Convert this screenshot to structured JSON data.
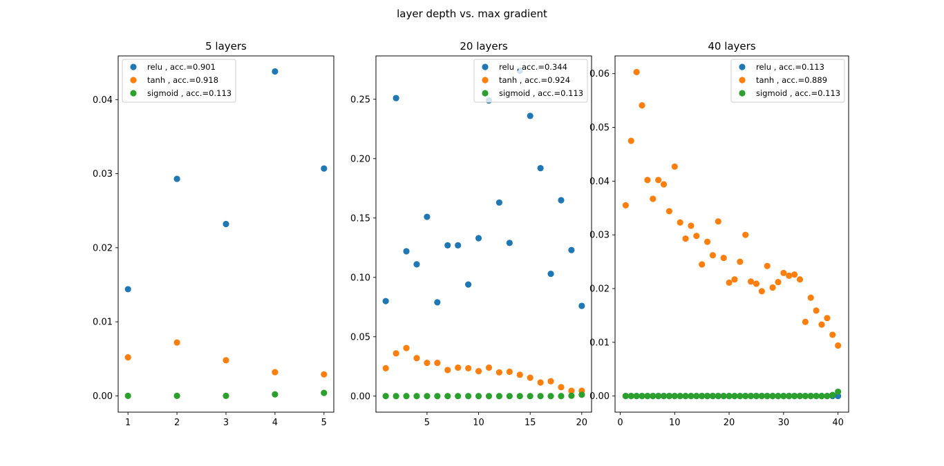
{
  "figure": {
    "suptitle": "layer depth vs. max gradient"
  },
  "chart_data": [
    {
      "type": "scatter",
      "title": "5 layers",
      "xlim": [
        0.8,
        5.2
      ],
      "ylim": [
        -0.0022,
        0.0459
      ],
      "xticks": [
        1,
        2,
        3,
        4,
        5
      ],
      "yticks": [
        0.0,
        0.01,
        0.02,
        0.03,
        0.04
      ],
      "ytick_format": 2,
      "legend_loc": "upper-left",
      "series": [
        {
          "name": "relu , acc.=0.901",
          "color": "#1f77b4",
          "x": [
            1,
            2,
            3,
            4,
            5
          ],
          "y": [
            0.0144,
            0.0293,
            0.0232,
            0.0438,
            0.0307
          ]
        },
        {
          "name": "tanh , acc.=0.918",
          "color": "#ff7f0e",
          "x": [
            1,
            2,
            3,
            4,
            5
          ],
          "y": [
            0.0052,
            0.0072,
            0.0048,
            0.0032,
            0.0029
          ]
        },
        {
          "name": "sigmoid , acc.=0.113",
          "color": "#2ca02c",
          "x": [
            1,
            2,
            3,
            4,
            5
          ],
          "y": [
            0.0,
            0.0,
            0.0,
            0.0002,
            0.0004
          ]
        }
      ]
    },
    {
      "type": "scatter",
      "title": "20 layers",
      "xlim": [
        0.05,
        20.95
      ],
      "ylim": [
        -0.0135,
        0.2865
      ],
      "xticks": [
        5,
        10,
        15,
        20
      ],
      "yticks": [
        0.0,
        0.05,
        0.1,
        0.15,
        0.2,
        0.25
      ],
      "ytick_format": 2,
      "legend_loc": "upper-right",
      "series": [
        {
          "name": "relu , acc.=0.344",
          "color": "#1f77b4",
          "x": [
            1,
            2,
            3,
            4,
            5,
            6,
            7,
            8,
            9,
            10,
            11,
            12,
            13,
            14,
            15,
            16,
            17,
            18,
            19,
            20
          ],
          "y": [
            0.08,
            0.251,
            0.122,
            0.111,
            0.151,
            0.079,
            0.127,
            0.127,
            0.094,
            0.133,
            0.249,
            0.163,
            0.129,
            0.274,
            0.236,
            0.192,
            0.103,
            0.165,
            0.123,
            0.076
          ]
        },
        {
          "name": "tanh , acc.=0.924",
          "color": "#ff7f0e",
          "x": [
            1,
            2,
            3,
            4,
            5,
            6,
            7,
            8,
            9,
            10,
            11,
            12,
            13,
            14,
            15,
            16,
            17,
            18,
            19,
            20
          ],
          "y": [
            0.0235,
            0.036,
            0.0405,
            0.032,
            0.028,
            0.028,
            0.022,
            0.024,
            0.0235,
            0.021,
            0.024,
            0.02,
            0.0205,
            0.018,
            0.0155,
            0.0115,
            0.0125,
            0.0075,
            0.0045,
            0.0045
          ]
        },
        {
          "name": "sigmoid , acc.=0.113",
          "color": "#2ca02c",
          "x": [
            1,
            2,
            3,
            4,
            5,
            6,
            7,
            8,
            9,
            10,
            11,
            12,
            13,
            14,
            15,
            16,
            17,
            18,
            19,
            20
          ],
          "y": [
            0,
            0,
            0,
            0,
            0,
            0,
            0,
            0,
            0,
            0,
            0,
            0,
            0,
            0,
            0,
            0,
            0,
            0,
            0.0003,
            0.0012
          ]
        }
      ]
    },
    {
      "type": "scatter",
      "title": "40 layers",
      "xlim": [
        -0.95,
        41.95
      ],
      "ylim": [
        -0.003,
        0.0633
      ],
      "xticks": [
        0,
        10,
        20,
        30,
        40
      ],
      "yticks": [
        0.0,
        0.01,
        0.02,
        0.03,
        0.04,
        0.05,
        0.06
      ],
      "ytick_format": 2,
      "legend_loc": "upper-right",
      "series": [
        {
          "name": "relu , acc.=0.113",
          "color": "#1f77b4",
          "x": [
            1,
            2,
            3,
            4,
            5,
            6,
            7,
            8,
            9,
            10,
            11,
            12,
            13,
            14,
            15,
            16,
            17,
            18,
            19,
            20,
            21,
            22,
            23,
            24,
            25,
            26,
            27,
            28,
            29,
            30,
            31,
            32,
            33,
            34,
            35,
            36,
            37,
            38,
            39,
            40
          ],
          "y": [
            0,
            0,
            0,
            0,
            0,
            0,
            0,
            0,
            0,
            0,
            0,
            0,
            0,
            0,
            0,
            0,
            0,
            0,
            0,
            0,
            0,
            0,
            0,
            0,
            0,
            0,
            0,
            0,
            0,
            0,
            0,
            0,
            0,
            0,
            0,
            0,
            0,
            0,
            0,
            0
          ]
        },
        {
          "name": "tanh , acc.=0.889",
          "color": "#ff7f0e",
          "x": [
            1,
            2,
            3,
            4,
            5,
            6,
            7,
            8,
            9,
            10,
            11,
            12,
            13,
            14,
            15,
            16,
            17,
            18,
            19,
            20,
            21,
            22,
            23,
            24,
            25,
            26,
            27,
            28,
            29,
            30,
            31,
            32,
            33,
            34,
            35,
            36,
            37,
            38,
            39,
            40
          ],
          "y": [
            0.0355,
            0.0475,
            0.0603,
            0.0541,
            0.0402,
            0.0367,
            0.0402,
            0.0394,
            0.0344,
            0.0427,
            0.0323,
            0.0293,
            0.0317,
            0.0298,
            0.0245,
            0.0287,
            0.0262,
            0.0325,
            0.0257,
            0.0211,
            0.0217,
            0.025,
            0.03,
            0.0213,
            0.0209,
            0.0195,
            0.0242,
            0.0202,
            0.0212,
            0.0229,
            0.0224,
            0.0226,
            0.0217,
            0.0138,
            0.0183,
            0.0159,
            0.0133,
            0.0145,
            0.0114,
            0.0094
          ]
        },
        {
          "name": "sigmoid , acc.=0.113",
          "color": "#2ca02c",
          "x": [
            1,
            2,
            3,
            4,
            5,
            6,
            7,
            8,
            9,
            10,
            11,
            12,
            13,
            14,
            15,
            16,
            17,
            18,
            19,
            20,
            21,
            22,
            23,
            24,
            25,
            26,
            27,
            28,
            29,
            30,
            31,
            32,
            33,
            34,
            35,
            36,
            37,
            38,
            39,
            40
          ],
          "y": [
            0,
            0,
            0,
            0,
            0,
            0,
            0,
            0,
            0,
            0,
            0,
            0,
            0,
            0,
            0,
            0,
            0,
            0,
            0,
            0,
            0,
            0,
            0,
            0,
            0,
            0,
            0,
            0,
            0,
            0,
            0,
            0,
            0,
            0,
            0,
            0,
            0,
            0,
            0.0002,
            0.0008
          ]
        }
      ]
    }
  ]
}
